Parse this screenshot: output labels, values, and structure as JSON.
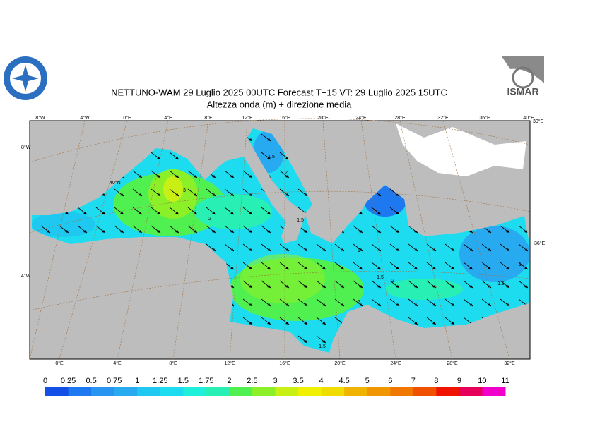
{
  "header": {
    "title": "NETTUNO-WAM  29  Luglio   2025 00UTC Forecast T+15 VT: 29  Luglio   2025 15UTC",
    "subtitle": "Altezza onda (m) + direzione media",
    "logo_text": "ISMAR"
  },
  "map": {
    "top_labels": [
      "8°W",
      "4°W",
      "0°E",
      "4°E",
      "8°E",
      "12°E",
      "16°E",
      "20°E",
      "24°E",
      "28°E",
      "32°E",
      "36°E",
      "40°E"
    ],
    "bottom_labels": [
      "0°E",
      "4°E",
      "8°E",
      "12°E",
      "16°E",
      "20°E",
      "24°E",
      "28°E",
      "32°E"
    ],
    "left_labels": [
      "8°W",
      "40°N",
      "4°W"
    ],
    "right_labels": [
      "30°E",
      "36°E"
    ],
    "contour_labels": [
      "1.5",
      "2",
      "3",
      "2",
      "2",
      "1.5",
      "1",
      "1.5",
      "1.5",
      "2",
      "1",
      "1.5"
    ]
  },
  "colorbar": {
    "labels": [
      "0",
      "0.25",
      "0.5",
      "0.75",
      "1",
      "1.25",
      "1.5",
      "1.75",
      "2",
      "2.5",
      "3",
      "3.5",
      "4",
      "4.5",
      "5",
      "6",
      "7",
      "8",
      "9",
      "10",
      "11"
    ],
    "colors": [
      "#1450e6",
      "#1e78f0",
      "#2896f0",
      "#28aaf0",
      "#1ec8f0",
      "#1edcf0",
      "#1ef0dc",
      "#28f0b4",
      "#50f050",
      "#8cf028",
      "#c8f014",
      "#f0f000",
      "#f0dc00",
      "#f0b400",
      "#f09600",
      "#f07800",
      "#f05000",
      "#f01400",
      "#e6005a",
      "#f000c8"
    ]
  }
}
